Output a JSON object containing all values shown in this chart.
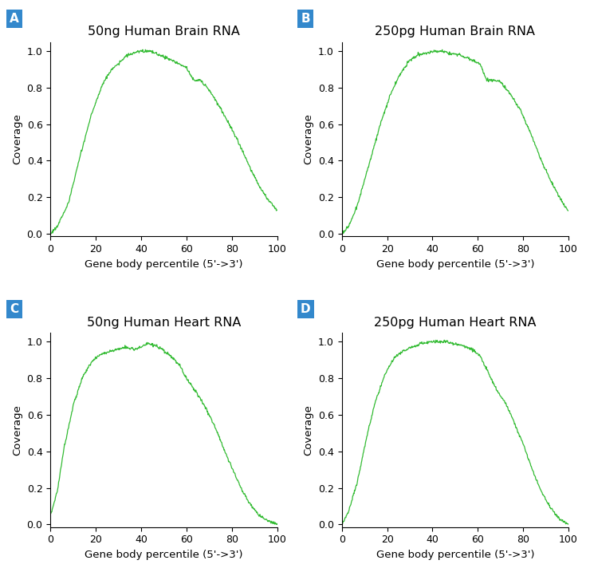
{
  "panels": [
    {
      "label": "A",
      "title": "50ng Human Brain RNA",
      "curve": "brain_50ng"
    },
    {
      "label": "B",
      "title": "250pg Human Brain RNA",
      "curve": "brain_250pg"
    },
    {
      "label": "C",
      "title": "50ng Human Heart RNA",
      "curve": "heart_50ng"
    },
    {
      "label": "D",
      "title": "250pg Human Heart RNA",
      "curve": "heart_250pg"
    }
  ],
  "line_color": "#33bb33",
  "xlabel": "Gene body percentile (5'->3')",
  "ylabel": "Coverage",
  "xlim": [
    0,
    100
  ],
  "xticks": [
    0,
    20,
    40,
    60,
    80,
    100
  ],
  "yticks": [
    0.0,
    0.2,
    0.4,
    0.6,
    0.8,
    1.0
  ],
  "label_bg_color": "#3388cc",
  "label_text_color": "#ffffff",
  "fig_bg_color": "#ffffff"
}
